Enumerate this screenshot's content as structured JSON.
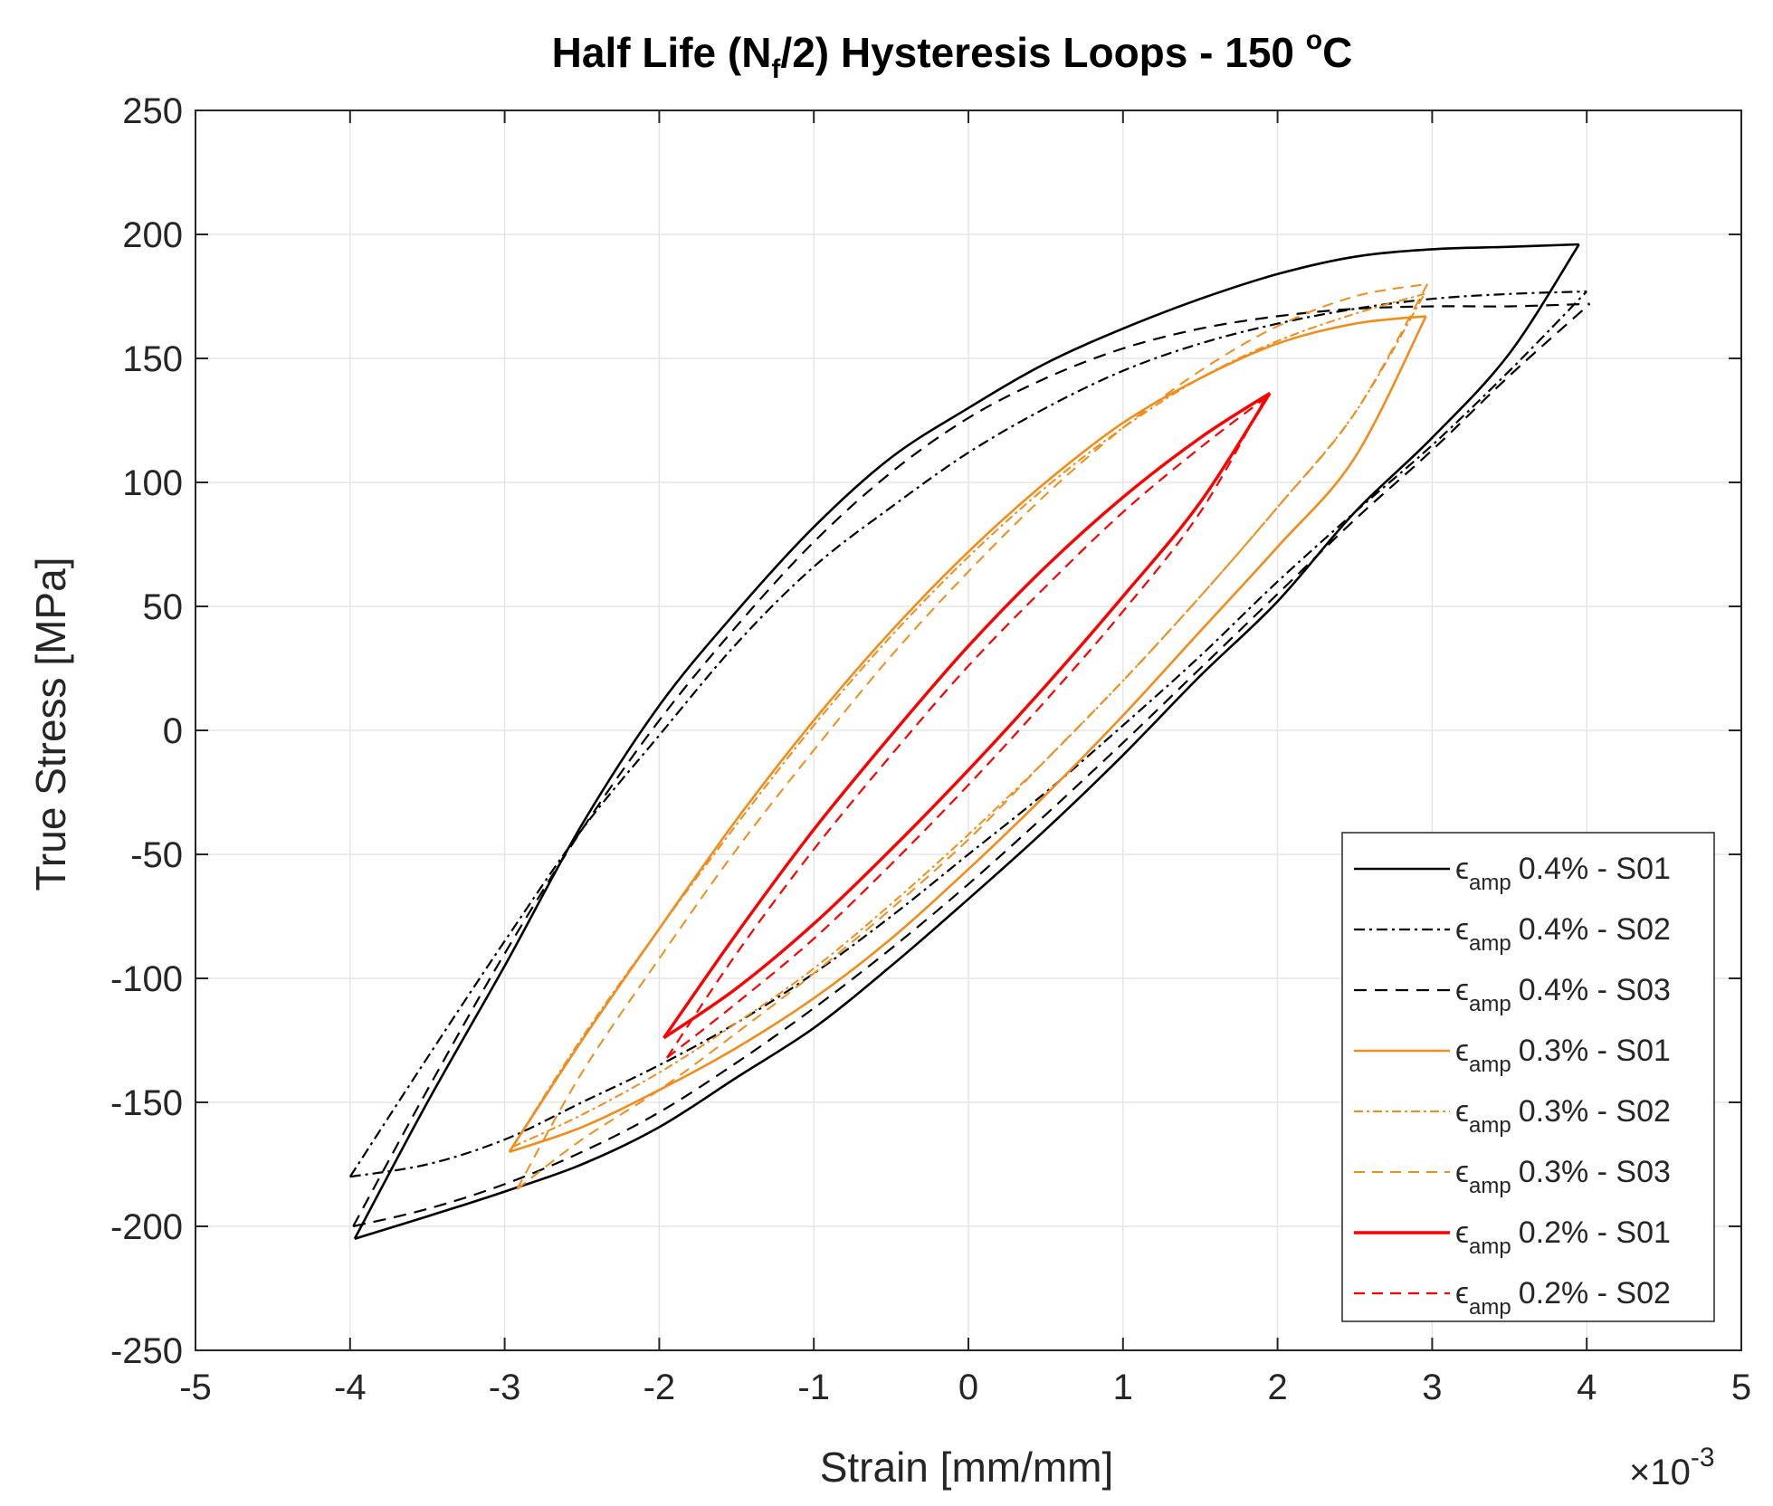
{
  "chart_data": {
    "type": "line",
    "title": {
      "prefix": "Half Life (N",
      "sub": "f",
      "suffix": "/2) Hysteresis Loops - 150 ",
      "sup": "o",
      "unit": "C"
    },
    "xlabel": "Strain [mm/mm]",
    "ylabel": "True Stress [MPa]",
    "x_exponent": {
      "base": "×10",
      "exp": "-3"
    },
    "xlim": [
      -5,
      5
    ],
    "ylim": [
      -250,
      250
    ],
    "xticks": [
      "-5",
      "-4",
      "-3",
      "-2",
      "-1",
      "0",
      "1",
      "2",
      "3",
      "4",
      "5"
    ],
    "yticks": [
      "250",
      "200",
      "150",
      "100",
      "50",
      "0",
      "-50",
      "-100",
      "-150",
      "-200",
      "-250"
    ],
    "grid": true,
    "legend_position": "bottom-right",
    "series": [
      {
        "name": "ϵamp 0.4% - S01",
        "sym": "ϵ",
        "sub": "amp",
        "text": "0.4% - S01",
        "color": "#000000",
        "dash": "",
        "width": 2.6,
        "upper": [
          [
            -3.97,
            -205
          ],
          [
            -3.5,
            -150
          ],
          [
            -3,
            -95
          ],
          [
            -2.5,
            -38
          ],
          [
            -2,
            10
          ],
          [
            -1.5,
            48
          ],
          [
            -1,
            82
          ],
          [
            -0.5,
            110
          ],
          [
            0,
            130
          ],
          [
            0.5,
            148
          ],
          [
            1,
            162
          ],
          [
            1.5,
            174
          ],
          [
            2,
            184
          ],
          [
            2.5,
            191
          ],
          [
            3,
            194
          ],
          [
            3.5,
            195
          ],
          [
            3.95,
            196
          ]
        ],
        "lower": [
          [
            -3.97,
            -205
          ],
          [
            -3.5,
            -196
          ],
          [
            -3,
            -186
          ],
          [
            -2.5,
            -175
          ],
          [
            -2,
            -160
          ],
          [
            -1.5,
            -140
          ],
          [
            -1,
            -120
          ],
          [
            -0.5,
            -95
          ],
          [
            0,
            -68
          ],
          [
            0.5,
            -40
          ],
          [
            1,
            -10
          ],
          [
            1.5,
            22
          ],
          [
            2,
            52
          ],
          [
            2.5,
            88
          ],
          [
            3,
            118
          ],
          [
            3.5,
            152
          ],
          [
            3.95,
            196
          ]
        ]
      },
      {
        "name": "ϵamp 0.4% - S02",
        "sym": "ϵ",
        "sub": "amp",
        "text": "0.4% - S02",
        "color": "#000000",
        "dash": "12,5,3,5",
        "width": 2.2,
        "upper": [
          [
            -4.0,
            -180
          ],
          [
            -3.5,
            -132
          ],
          [
            -3,
            -85
          ],
          [
            -2.5,
            -40
          ],
          [
            -2,
            -2
          ],
          [
            -1.5,
            35
          ],
          [
            -1,
            66
          ],
          [
            -0.5,
            90
          ],
          [
            0,
            112
          ],
          [
            0.5,
            130
          ],
          [
            1,
            145
          ],
          [
            1.5,
            156
          ],
          [
            2,
            164
          ],
          [
            2.5,
            170
          ],
          [
            3,
            174
          ],
          [
            3.5,
            176
          ],
          [
            4.0,
            177
          ]
        ],
        "lower": [
          [
            -4.0,
            -180
          ],
          [
            -3.5,
            -175
          ],
          [
            -3,
            -165
          ],
          [
            -2.5,
            -150
          ],
          [
            -2,
            -135
          ],
          [
            -1.5,
            -118
          ],
          [
            -1,
            -98
          ],
          [
            -0.5,
            -75
          ],
          [
            0,
            -50
          ],
          [
            0.5,
            -25
          ],
          [
            1,
            2
          ],
          [
            1.5,
            30
          ],
          [
            2,
            60
          ],
          [
            2.5,
            88
          ],
          [
            3,
            115
          ],
          [
            3.5,
            145
          ],
          [
            4.0,
            177
          ]
        ]
      },
      {
        "name": "ϵamp 0.4% - S03",
        "sym": "ϵ",
        "sub": "amp",
        "text": "0.4% - S03",
        "color": "#000000",
        "dash": "14,9",
        "width": 2.2,
        "upper": [
          [
            -3.98,
            -200
          ],
          [
            -3.5,
            -145
          ],
          [
            -3,
            -90
          ],
          [
            -2.5,
            -40
          ],
          [
            -2,
            4
          ],
          [
            -1.5,
            42
          ],
          [
            -1,
            76
          ],
          [
            -0.5,
            104
          ],
          [
            0,
            126
          ],
          [
            0.5,
            142
          ],
          [
            1,
            154
          ],
          [
            1.5,
            162
          ],
          [
            2,
            167
          ],
          [
            2.5,
            170
          ],
          [
            3,
            171
          ],
          [
            3.5,
            171
          ],
          [
            4.02,
            172
          ]
        ],
        "lower": [
          [
            -3.98,
            -200
          ],
          [
            -3.5,
            -193
          ],
          [
            -3,
            -183
          ],
          [
            -2.5,
            -170
          ],
          [
            -2,
            -154
          ],
          [
            -1.5,
            -134
          ],
          [
            -1,
            -112
          ],
          [
            -0.5,
            -88
          ],
          [
            0,
            -62
          ],
          [
            0.5,
            -34
          ],
          [
            1,
            -5
          ],
          [
            1.5,
            25
          ],
          [
            2,
            55
          ],
          [
            2.5,
            85
          ],
          [
            3,
            113
          ],
          [
            3.5,
            143
          ],
          [
            4.02,
            172
          ]
        ]
      },
      {
        "name": "ϵamp 0.3% - S01",
        "sym": "ϵ",
        "sub": "amp",
        "text": "0.3% - S01",
        "color": "#f28c1a",
        "dash": "",
        "width": 2.6,
        "upper": [
          [
            -2.97,
            -170
          ],
          [
            -2.5,
            -125
          ],
          [
            -2,
            -80
          ],
          [
            -1.5,
            -36
          ],
          [
            -1,
            4
          ],
          [
            -0.5,
            40
          ],
          [
            0,
            72
          ],
          [
            0.5,
            100
          ],
          [
            1,
            124
          ],
          [
            1.5,
            142
          ],
          [
            2,
            156
          ],
          [
            2.5,
            164
          ],
          [
            2.96,
            167
          ]
        ],
        "lower": [
          [
            -2.97,
            -170
          ],
          [
            -2.5,
            -160
          ],
          [
            -2,
            -145
          ],
          [
            -1.5,
            -128
          ],
          [
            -1,
            -108
          ],
          [
            -0.5,
            -84
          ],
          [
            0,
            -56
          ],
          [
            0.5,
            -26
          ],
          [
            1,
            6
          ],
          [
            1.5,
            40
          ],
          [
            2,
            74
          ],
          [
            2.5,
            110
          ],
          [
            2.96,
            167
          ]
        ]
      },
      {
        "name": "ϵamp 0.3% - S02",
        "sym": "ϵ",
        "sub": "amp",
        "text": "0.3% - S02",
        "color": "#f28c1a",
        "dash": "10,4,3,4",
        "width": 2.0,
        "upper": [
          [
            -2.95,
            -168
          ],
          [
            -2.5,
            -124
          ],
          [
            -2,
            -80
          ],
          [
            -1.5,
            -38
          ],
          [
            -1,
            2
          ],
          [
            -0.5,
            38
          ],
          [
            0,
            70
          ],
          [
            0.5,
            98
          ],
          [
            1,
            122
          ],
          [
            1.5,
            142
          ],
          [
            2,
            157
          ],
          [
            2.5,
            168
          ],
          [
            2.95,
            176
          ]
        ],
        "lower": [
          [
            -2.95,
            -168
          ],
          [
            -2.5,
            -155
          ],
          [
            -2,
            -138
          ],
          [
            -1.5,
            -118
          ],
          [
            -1,
            -96
          ],
          [
            -0.5,
            -70
          ],
          [
            0,
            -42
          ],
          [
            0.5,
            -12
          ],
          [
            1,
            20
          ],
          [
            1.5,
            54
          ],
          [
            2,
            90
          ],
          [
            2.5,
            128
          ],
          [
            2.95,
            176
          ]
        ]
      },
      {
        "name": "ϵamp 0.3% - S03",
        "sym": "ϵ",
        "sub": "amp",
        "text": "0.3% - S03",
        "color": "#f28c1a",
        "dash": "12,8",
        "width": 2.0,
        "upper": [
          [
            -2.92,
            -185
          ],
          [
            -2.5,
            -138
          ],
          [
            -2,
            -92
          ],
          [
            -1.5,
            -48
          ],
          [
            -1,
            -8
          ],
          [
            -0.5,
            30
          ],
          [
            0,
            64
          ],
          [
            0.5,
            95
          ],
          [
            1,
            122
          ],
          [
            1.5,
            145
          ],
          [
            2,
            163
          ],
          [
            2.5,
            175
          ],
          [
            2.97,
            180
          ]
        ],
        "lower": [
          [
            -2.92,
            -185
          ],
          [
            -2.5,
            -165
          ],
          [
            -2,
            -145
          ],
          [
            -1.5,
            -122
          ],
          [
            -1,
            -98
          ],
          [
            -0.5,
            -72
          ],
          [
            0,
            -44
          ],
          [
            0.5,
            -12
          ],
          [
            1,
            20
          ],
          [
            1.5,
            54
          ],
          [
            2,
            90
          ],
          [
            2.5,
            128
          ],
          [
            2.97,
            180
          ]
        ]
      },
      {
        "name": "ϵamp 0.2% - S01",
        "sym": "ϵ",
        "sub": "amp",
        "text": "0.2% - S01",
        "color": "#ff0000",
        "dash": "",
        "width": 3.4,
        "upper": [
          [
            -1.97,
            -124
          ],
          [
            -1.5,
            -82
          ],
          [
            -1,
            -40
          ],
          [
            -0.5,
            -2
          ],
          [
            0,
            34
          ],
          [
            0.5,
            66
          ],
          [
            1,
            94
          ],
          [
            1.5,
            118
          ],
          [
            1.95,
            136
          ]
        ],
        "lower": [
          [
            -1.97,
            -124
          ],
          [
            -1.5,
            -104
          ],
          [
            -1,
            -78
          ],
          [
            -0.5,
            -48
          ],
          [
            0,
            -16
          ],
          [
            0.5,
            18
          ],
          [
            1,
            54
          ],
          [
            1.5,
            92
          ],
          [
            1.95,
            136
          ]
        ]
      },
      {
        "name": "ϵamp 0.2% - S02",
        "sym": "ϵ",
        "sub": "amp",
        "text": "0.2% - S02",
        "color": "#ff0000",
        "dash": "12,8",
        "width": 2.2,
        "upper": [
          [
            -1.95,
            -132
          ],
          [
            -1.5,
            -90
          ],
          [
            -1,
            -48
          ],
          [
            -0.5,
            -10
          ],
          [
            0,
            26
          ],
          [
            0.5,
            58
          ],
          [
            1,
            88
          ],
          [
            1.5,
            114
          ],
          [
            1.92,
            134
          ]
        ],
        "lower": [
          [
            -1.95,
            -132
          ],
          [
            -1.5,
            -110
          ],
          [
            -1,
            -84
          ],
          [
            -0.5,
            -54
          ],
          [
            0,
            -22
          ],
          [
            0.5,
            12
          ],
          [
            1,
            48
          ],
          [
            1.5,
            88
          ],
          [
            1.92,
            134
          ]
        ]
      }
    ]
  }
}
